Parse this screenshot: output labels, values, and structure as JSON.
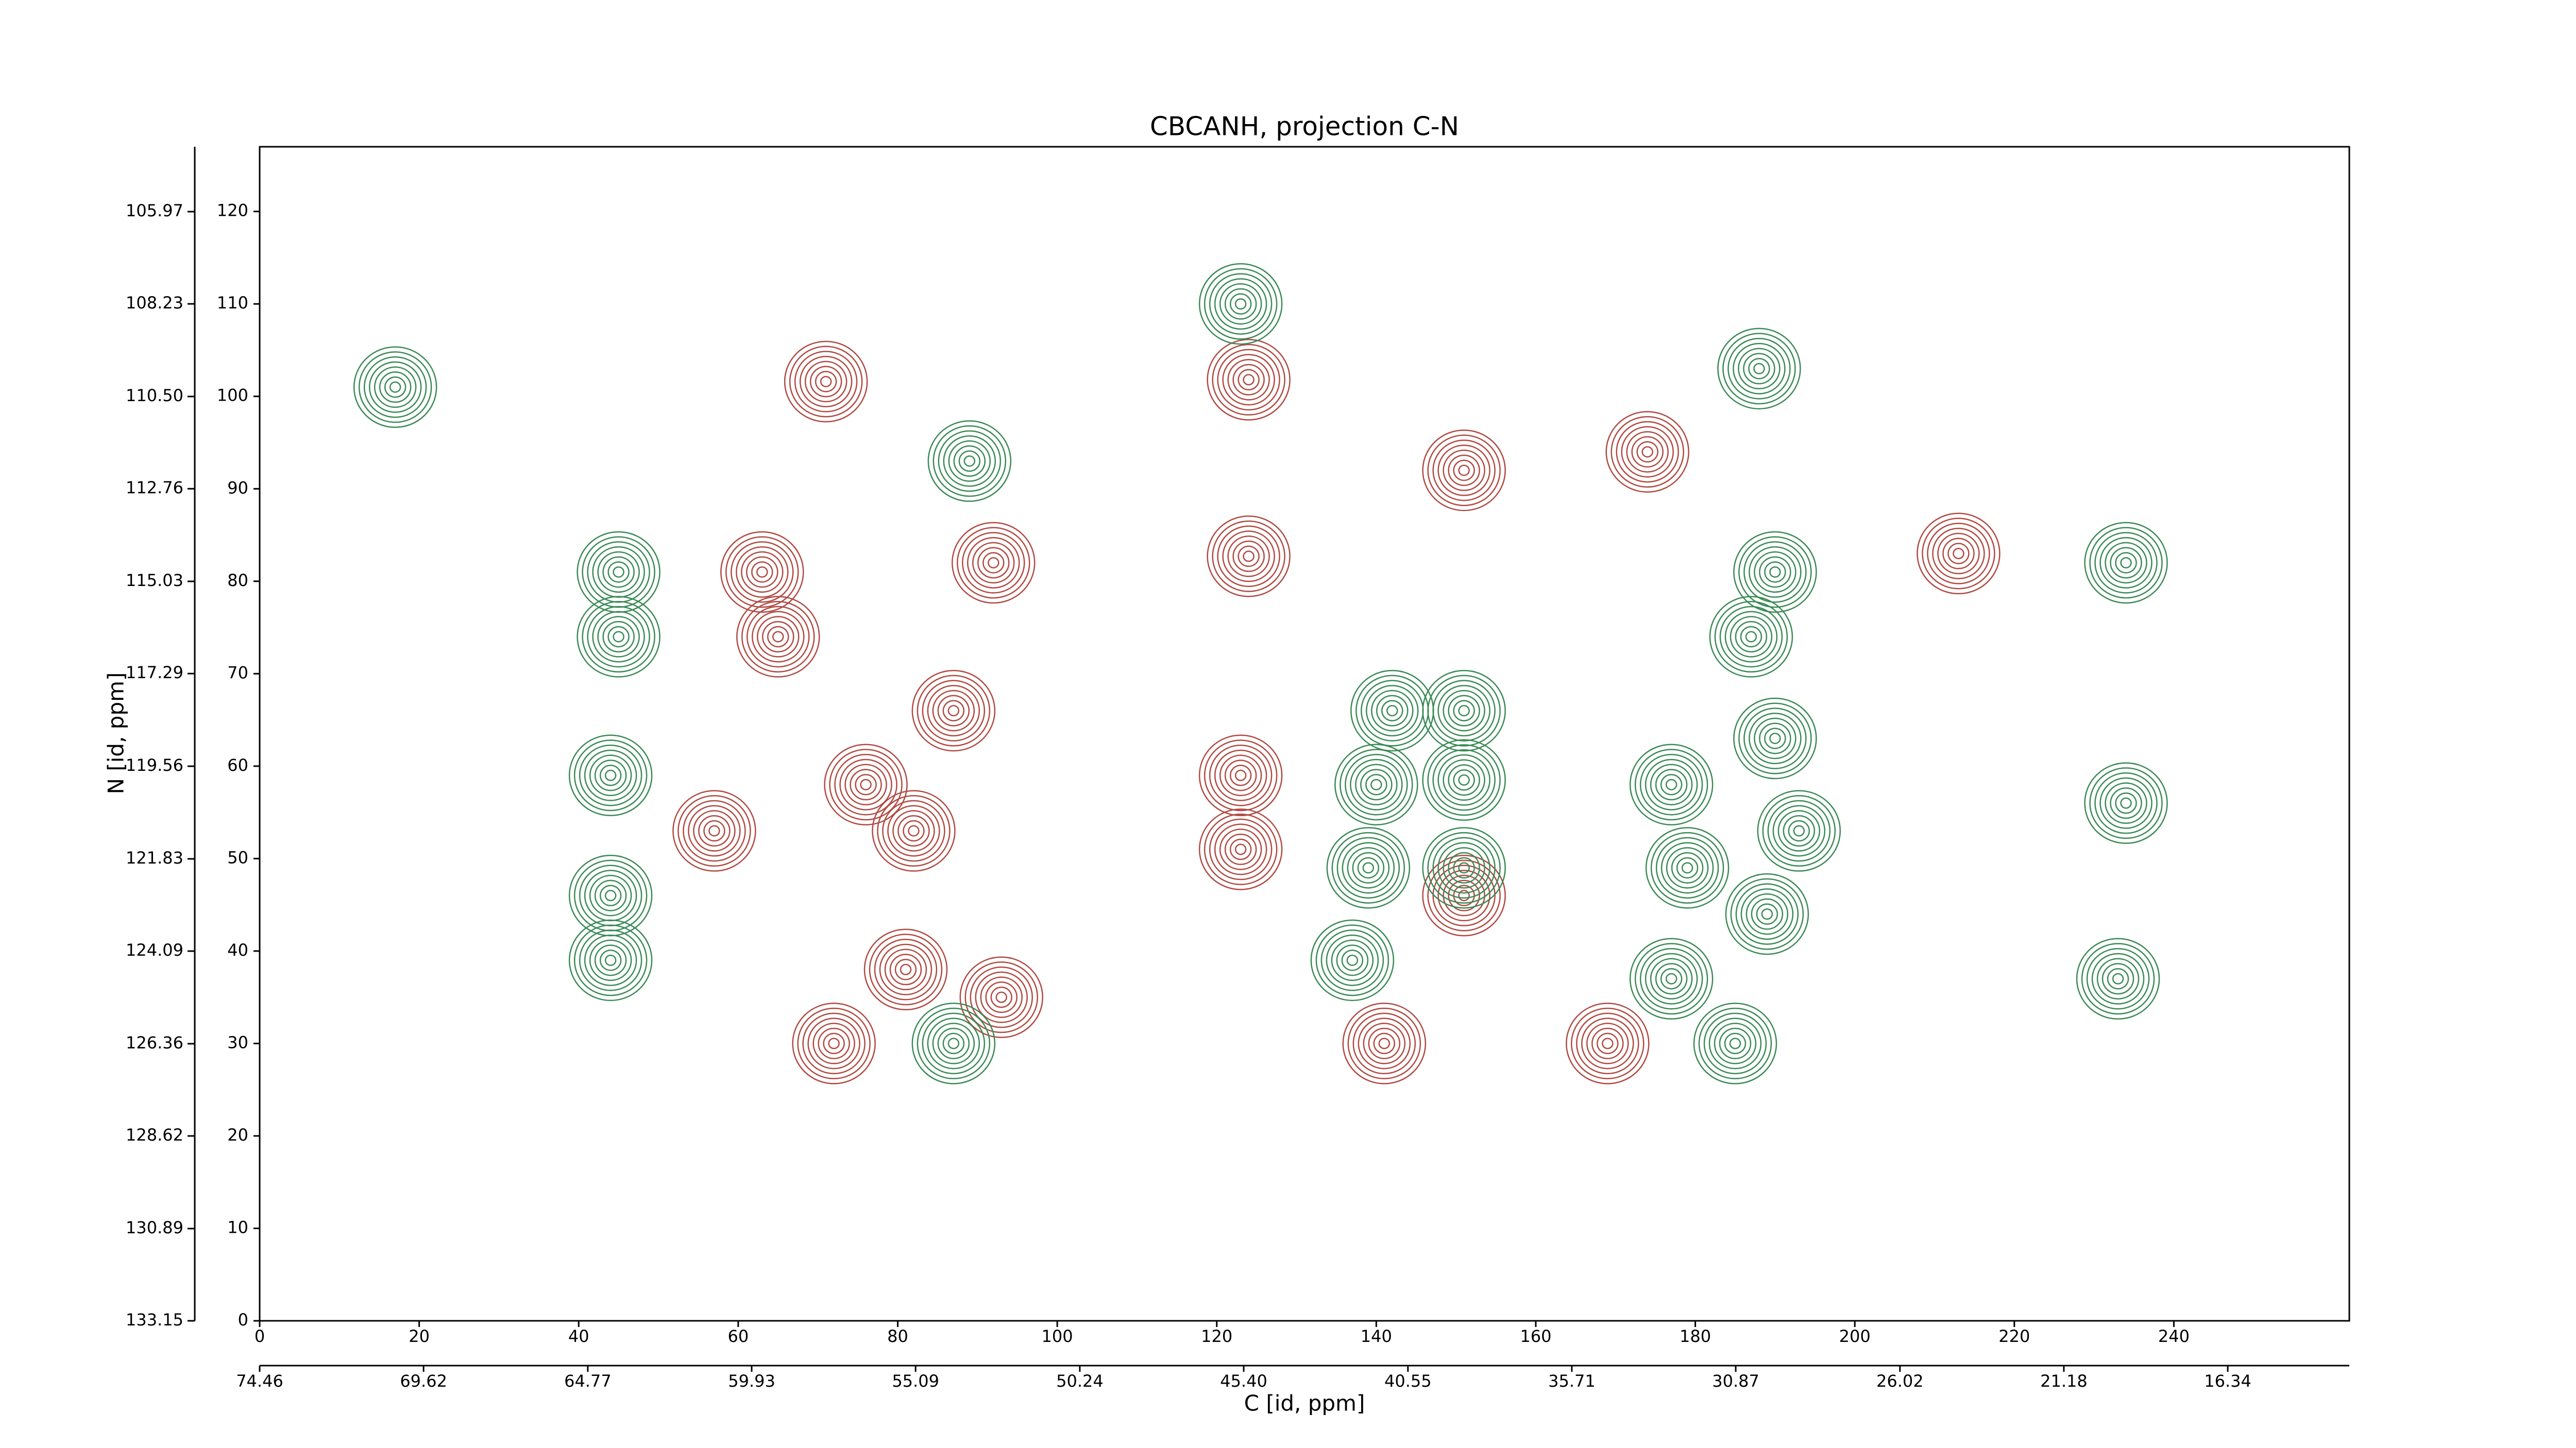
{
  "chart_data": {
    "type": "contour",
    "title": "CBCANH, projection C-N",
    "xlabel": "C [id, ppm]",
    "ylabel": "N [id, ppm]",
    "xlim": [
      0,
      262
    ],
    "ylim": [
      0,
      127
    ],
    "xticks": [
      0,
      20,
      40,
      60,
      80,
      100,
      120,
      140,
      160,
      180,
      200,
      220,
      240
    ],
    "yticks": [
      0,
      10,
      20,
      30,
      40,
      50,
      60,
      70,
      80,
      90,
      100,
      110,
      120
    ],
    "x2lim": [
      74.46,
      12.75
    ],
    "x2ticks": [
      74.46,
      69.62,
      64.77,
      59.93,
      55.09,
      50.24,
      {
        "value": 45.4,
        "label": "45.40"
      },
      40.55,
      35.71,
      30.87,
      26.02,
      21.18,
      16.34
    ],
    "y2lim": [
      133.15,
      104.38
    ],
    "y2ticks": [
      105.97,
      108.23,
      {
        "value": 110.5,
        "label": "110.50"
      },
      112.76,
      115.03,
      117.29,
      119.56,
      121.83,
      124.09,
      126.36,
      128.62,
      130.89,
      133.15
    ],
    "series": [
      {
        "color": "#b04a42",
        "x": [
          124,
          124,
          123,
          123,
          71,
          63,
          65,
          87,
          92,
          93,
          72,
          57,
          82,
          76,
          81,
          151,
          174,
          213,
          141,
          169,
          151
        ],
        "y": [
          101.8,
          82.7,
          59,
          51,
          101.6,
          81,
          74,
          66,
          82,
          35,
          30,
          53,
          53,
          58,
          38,
          92,
          94,
          83,
          30,
          30,
          46
        ]
      },
      {
        "color": "#3a8a55",
        "x": [
          123,
          45,
          45,
          44,
          44,
          44,
          17,
          89,
          142,
          151,
          140,
          151,
          139,
          151,
          137,
          188,
          190,
          187,
          190,
          177,
          193,
          179,
          189,
          177,
          185,
          234,
          234,
          233,
          87
        ],
        "y": [
          110,
          81,
          74,
          59,
          46,
          39,
          101,
          93,
          66,
          66,
          58,
          58.5,
          49,
          49,
          39,
          103,
          81,
          74,
          63,
          58,
          53,
          49,
          44,
          37,
          30,
          82,
          56,
          37,
          30
        ]
      }
    ]
  }
}
